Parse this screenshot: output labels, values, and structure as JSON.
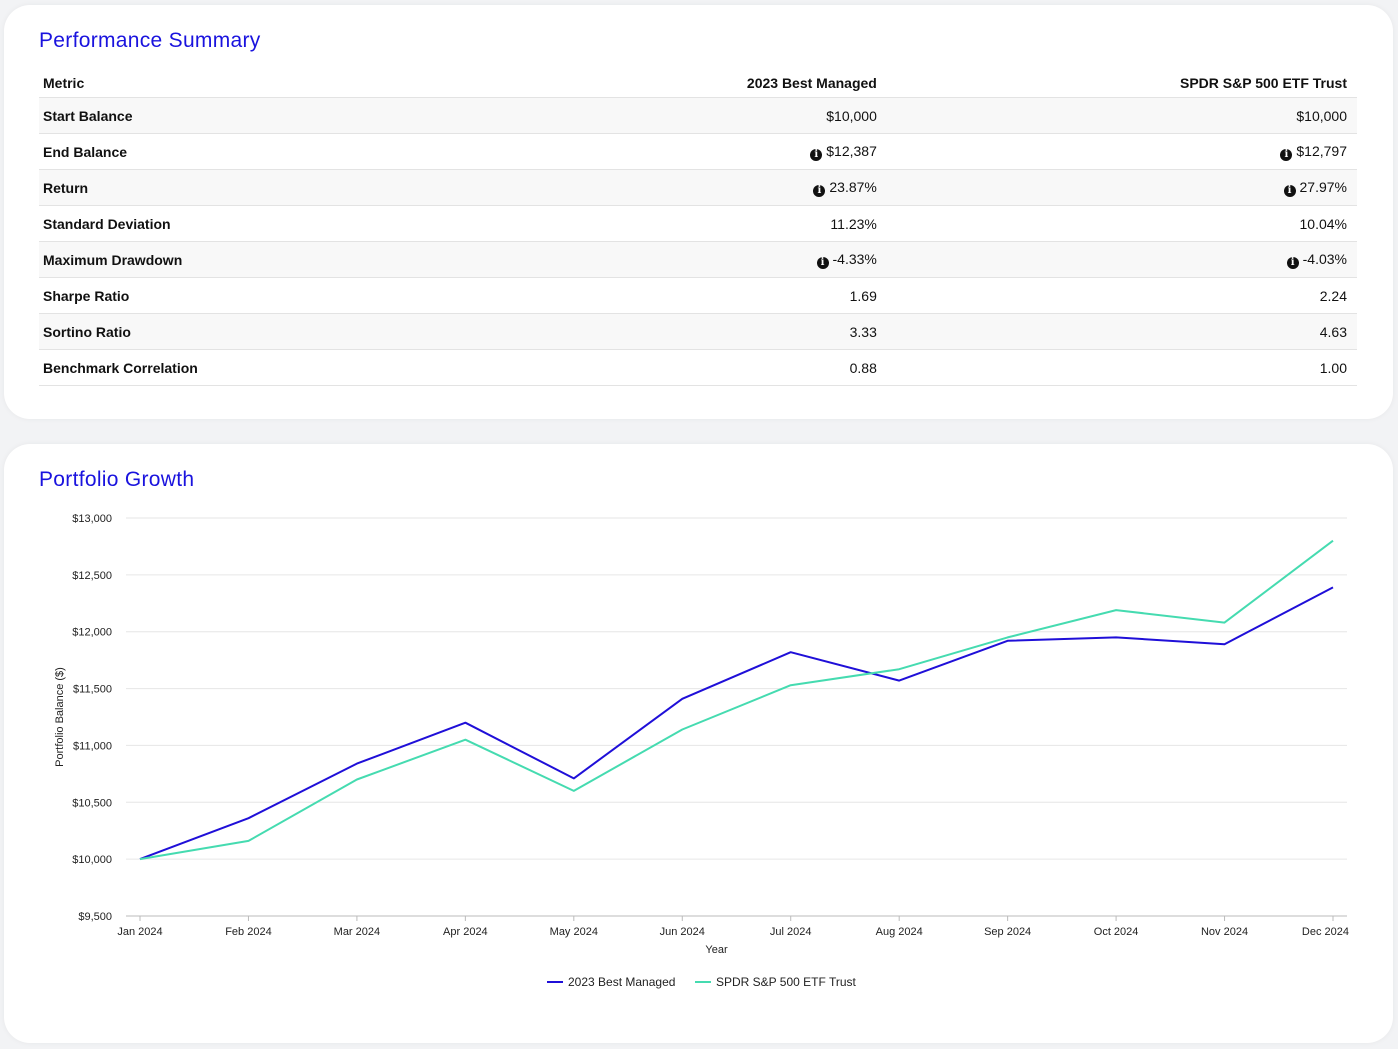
{
  "summary": {
    "title": "Performance Summary",
    "columns": [
      "Metric",
      "2023 Best Managed",
      "SPDR S&P 500 ETF Trust"
    ],
    "rows": [
      {
        "metric": "Start Balance",
        "a": "$10,000",
        "a_info": false,
        "b": "$10,000",
        "b_info": false
      },
      {
        "metric": "End Balance",
        "a": "$12,387",
        "a_info": true,
        "b": "$12,797",
        "b_info": true
      },
      {
        "metric": "Return",
        "a": "23.87%",
        "a_info": true,
        "b": "27.97%",
        "b_info": true
      },
      {
        "metric": "Standard Deviation",
        "a": "11.23%",
        "a_info": false,
        "b": "10.04%",
        "b_info": false
      },
      {
        "metric": "Maximum Drawdown",
        "a": "-4.33%",
        "a_info": true,
        "b": "-4.03%",
        "b_info": true
      },
      {
        "metric": "Sharpe Ratio",
        "a": "1.69",
        "a_info": false,
        "b": "2.24",
        "b_info": false
      },
      {
        "metric": "Sortino Ratio",
        "a": "3.33",
        "a_info": false,
        "b": "4.63",
        "b_info": false
      },
      {
        "metric": "Benchmark Correlation",
        "a": "0.88",
        "a_info": false,
        "b": "1.00",
        "b_info": false
      }
    ],
    "info_icon": "info-circle-icon"
  },
  "growth": {
    "title": "Portfolio Growth"
  },
  "chart_data": {
    "type": "line",
    "title": "Portfolio Growth",
    "xlabel": "Year",
    "ylabel": "Portfolio Balance ($)",
    "x": [
      "Jan 2024",
      "Feb 2024",
      "Mar 2024",
      "Apr 2024",
      "May 2024",
      "Jun 2024",
      "Jul 2024",
      "Aug 2024",
      "Sep 2024",
      "Oct 2024",
      "Nov 2024",
      "Dec 2024"
    ],
    "y_ticks": [
      "$9,500",
      "$10,000",
      "$10,500",
      "$11,000",
      "$11,500",
      "$12,000",
      "$12,500",
      "$13,000"
    ],
    "ylim": [
      9500,
      13000
    ],
    "grid": true,
    "legend_position": "bottom",
    "series": [
      {
        "name": "2023 Best Managed",
        "color": "#1f0fd8",
        "values": [
          10000,
          10360,
          10840,
          11200,
          10710,
          11410,
          11820,
          11570,
          11920,
          11950,
          11890,
          12390
        ]
      },
      {
        "name": "SPDR S&P 500 ETF Trust",
        "color": "#45dbb0",
        "values": [
          10000,
          10160,
          10700,
          11050,
          10600,
          11140,
          11530,
          11670,
          11950,
          12190,
          12080,
          12800
        ]
      }
    ]
  }
}
